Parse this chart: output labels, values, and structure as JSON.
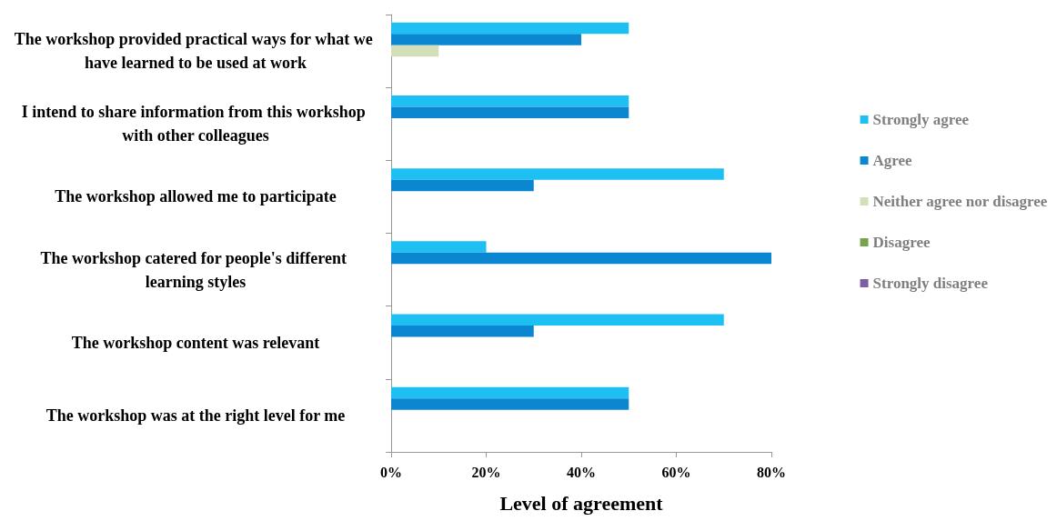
{
  "chart_data": {
    "type": "bar",
    "orientation": "horizontal",
    "xlabel": "Level of agreement",
    "categories": [
      "The workshop provided practical ways for what we have learned to be used at work",
      "I intend to share information from this workshop with other colleagues",
      "The workshop allowed me to participate",
      "The workshop catered for people's different learning styles",
      "The workshop content was relevant",
      "The workshop was at the right level for me"
    ],
    "series": [
      {
        "name": "Strongly agree",
        "color": "#1ebff2",
        "values": [
          50,
          50,
          70,
          20,
          70,
          50
        ]
      },
      {
        "name": "Agree",
        "color": "#0a87d0",
        "values": [
          40,
          50,
          30,
          80,
          30,
          50
        ]
      },
      {
        "name": "Neither agree nor disagree",
        "color": "#d3dfb8",
        "values": [
          10,
          0,
          0,
          0,
          0,
          0
        ]
      },
      {
        "name": "Disagree",
        "color": "#77a34a",
        "values": [
          0,
          0,
          0,
          0,
          0,
          0
        ]
      },
      {
        "name": "Strongly disagree",
        "color": "#7b5fa0",
        "values": [
          0,
          0,
          0,
          0,
          0,
          0
        ]
      }
    ],
    "xlim": [
      0,
      80
    ],
    "xticks": [
      {
        "value": 0,
        "label": "0%"
      },
      {
        "value": 20,
        "label": "20%"
      },
      {
        "value": 40,
        "label": "40%"
      },
      {
        "value": 60,
        "label": "60%"
      },
      {
        "value": 80,
        "label": "80%"
      }
    ],
    "grid": false,
    "legend": "right"
  }
}
